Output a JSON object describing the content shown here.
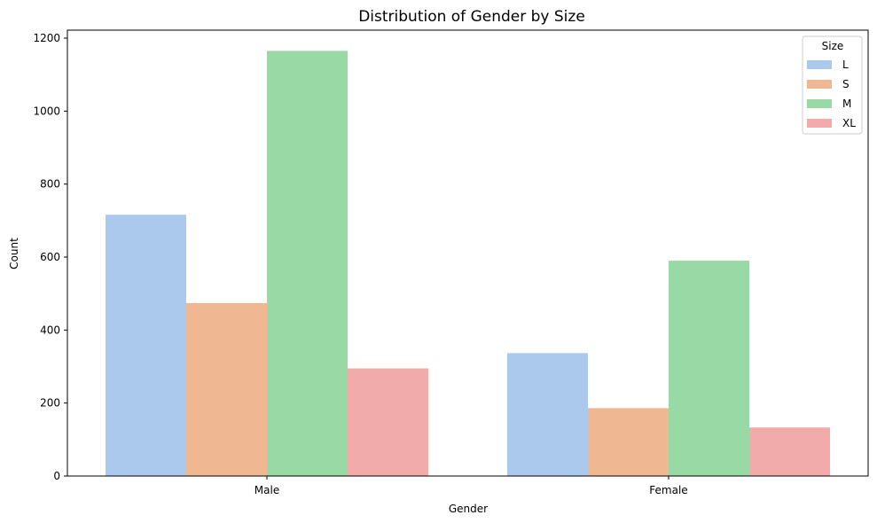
{
  "chart_data": {
    "type": "bar",
    "title": "Distribution of Gender by Size",
    "xlabel": "Gender",
    "ylabel": "Count",
    "categories": [
      "Male",
      "Female"
    ],
    "ylim": [
      0,
      1200
    ],
    "yticks": [
      0,
      200,
      400,
      600,
      800,
      1000,
      1200
    ],
    "grid": false,
    "legend": {
      "title": "Size",
      "placement": "top-right"
    },
    "series": [
      {
        "name": "L",
        "color": "#abc9ed",
        "values": [
          716,
          337
        ]
      },
      {
        "name": "S",
        "color": "#f0b892",
        "values": [
          474,
          186
        ]
      },
      {
        "name": "M",
        "color": "#98d9a5",
        "values": [
          1165,
          590
        ]
      },
      {
        "name": "XL",
        "color": "#f1abab",
        "values": [
          295,
          133
        ]
      }
    ]
  }
}
